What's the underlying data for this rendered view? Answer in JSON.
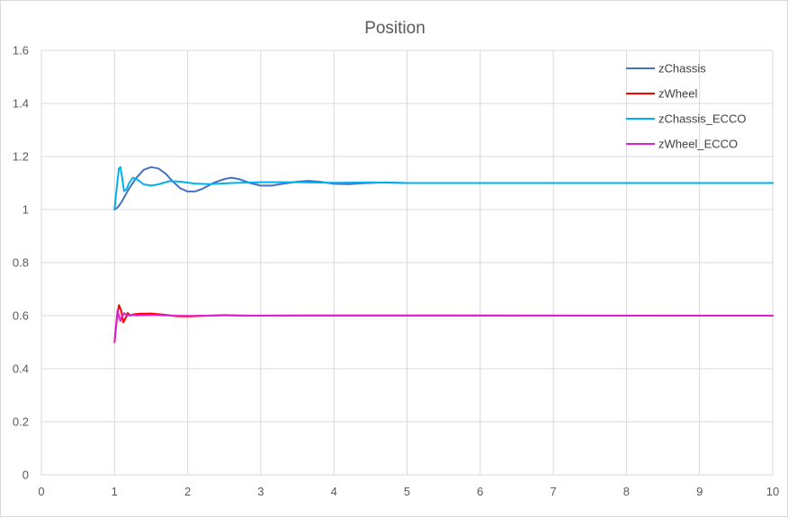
{
  "chart_data": {
    "type": "line",
    "title": "Position",
    "xlabel": "",
    "ylabel": "",
    "xlim": [
      0,
      10
    ],
    "ylim": [
      0,
      1.6
    ],
    "x_ticks": [
      "0",
      "1",
      "2",
      "3",
      "4",
      "5",
      "6",
      "7",
      "8",
      "9",
      "10"
    ],
    "y_ticks": [
      "0",
      "0.2",
      "0.4",
      "0.6",
      "0.8",
      "1",
      "1.2",
      "1.4",
      "1.6"
    ],
    "grid": true,
    "legend_position": "top-right",
    "series": [
      {
        "name": "zChassis",
        "color": "#4472c4",
        "points": [
          [
            1.0,
            1.0
          ],
          [
            1.05,
            1.01
          ],
          [
            1.1,
            1.03
          ],
          [
            1.2,
            1.08
          ],
          [
            1.3,
            1.12
          ],
          [
            1.4,
            1.15
          ],
          [
            1.5,
            1.16
          ],
          [
            1.6,
            1.155
          ],
          [
            1.7,
            1.135
          ],
          [
            1.8,
            1.105
          ],
          [
            1.9,
            1.08
          ],
          [
            2.0,
            1.068
          ],
          [
            2.1,
            1.068
          ],
          [
            2.2,
            1.078
          ],
          [
            2.35,
            1.1
          ],
          [
            2.5,
            1.115
          ],
          [
            2.6,
            1.12
          ],
          [
            2.7,
            1.115
          ],
          [
            2.85,
            1.1
          ],
          [
            3.0,
            1.09
          ],
          [
            3.15,
            1.09
          ],
          [
            3.3,
            1.097
          ],
          [
            3.5,
            1.105
          ],
          [
            3.65,
            1.108
          ],
          [
            3.8,
            1.105
          ],
          [
            4.0,
            1.097
          ],
          [
            4.2,
            1.096
          ],
          [
            4.4,
            1.099
          ],
          [
            4.7,
            1.102
          ],
          [
            5.0,
            1.1
          ],
          [
            10.0,
            1.1
          ]
        ]
      },
      {
        "name": "zWheel",
        "color": "#ff0000",
        "points": [
          [
            1.0,
            0.5
          ],
          [
            1.03,
            0.58
          ],
          [
            1.06,
            0.64
          ],
          [
            1.09,
            0.62
          ],
          [
            1.12,
            0.575
          ],
          [
            1.15,
            0.59
          ],
          [
            1.18,
            0.61
          ],
          [
            1.22,
            0.6
          ],
          [
            1.26,
            0.605
          ],
          [
            1.35,
            0.607
          ],
          [
            1.5,
            0.608
          ],
          [
            1.7,
            0.603
          ],
          [
            1.85,
            0.598
          ],
          [
            2.0,
            0.597
          ],
          [
            2.2,
            0.599
          ],
          [
            2.5,
            0.602
          ],
          [
            2.8,
            0.6
          ],
          [
            3.5,
            0.601
          ],
          [
            10.0,
            0.6
          ]
        ]
      },
      {
        "name": "zChassis_ECCO",
        "color": "#00b0f0",
        "points": [
          [
            1.0,
            1.0
          ],
          [
            1.03,
            1.08
          ],
          [
            1.06,
            1.155
          ],
          [
            1.08,
            1.16
          ],
          [
            1.1,
            1.13
          ],
          [
            1.13,
            1.07
          ],
          [
            1.16,
            1.075
          ],
          [
            1.2,
            1.1
          ],
          [
            1.25,
            1.12
          ],
          [
            1.3,
            1.115
          ],
          [
            1.4,
            1.095
          ],
          [
            1.5,
            1.09
          ],
          [
            1.6,
            1.095
          ],
          [
            1.75,
            1.107
          ],
          [
            1.9,
            1.105
          ],
          [
            2.1,
            1.098
          ],
          [
            2.3,
            1.096
          ],
          [
            2.6,
            1.1
          ],
          [
            3.0,
            1.103
          ],
          [
            3.5,
            1.103
          ],
          [
            4.0,
            1.101
          ],
          [
            4.5,
            1.102
          ],
          [
            5.0,
            1.1
          ],
          [
            10.0,
            1.1
          ]
        ]
      },
      {
        "name": "zWheel_ECCO",
        "color": "#e020d0",
        "points": [
          [
            1.0,
            0.5
          ],
          [
            1.02,
            0.56
          ],
          [
            1.04,
            0.62
          ],
          [
            1.06,
            0.6
          ],
          [
            1.08,
            0.58
          ],
          [
            1.1,
            0.595
          ],
          [
            1.13,
            0.61
          ],
          [
            1.17,
            0.6
          ],
          [
            1.22,
            0.603
          ],
          [
            1.3,
            0.601
          ],
          [
            1.5,
            0.603
          ],
          [
            1.8,
            0.6
          ],
          [
            2.0,
            0.599
          ],
          [
            2.5,
            0.601
          ],
          [
            3.0,
            0.6
          ],
          [
            10.0,
            0.6
          ]
        ]
      }
    ]
  }
}
